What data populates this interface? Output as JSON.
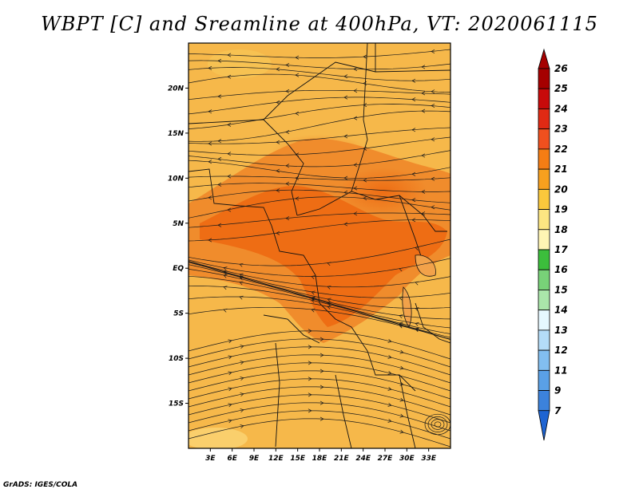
{
  "title": "WBPT [C] and Sreamline at 400hPa, VT: 2020061115",
  "credit": "GrADS: IGES/COLA",
  "map": {
    "lon_range": [
      0,
      36
    ],
    "lat_range": [
      -20,
      25
    ],
    "lat_ticks": [
      {
        "value": 20,
        "label": "20N"
      },
      {
        "value": 15,
        "label": "15N"
      },
      {
        "value": 10,
        "label": "10N"
      },
      {
        "value": 5,
        "label": "5N"
      },
      {
        "value": 0,
        "label": "EQ"
      },
      {
        "value": -5,
        "label": "5S"
      },
      {
        "value": -10,
        "label": "10S"
      },
      {
        "value": -15,
        "label": "15S"
      }
    ],
    "lon_ticks": [
      {
        "value": 3,
        "label": "3E"
      },
      {
        "value": 6,
        "label": "6E"
      },
      {
        "value": 9,
        "label": "9E"
      },
      {
        "value": 12,
        "label": "12E"
      },
      {
        "value": 15,
        "label": "15E"
      },
      {
        "value": 18,
        "label": "18E"
      },
      {
        "value": 21,
        "label": "21E"
      },
      {
        "value": 24,
        "label": "24E"
      },
      {
        "value": 27,
        "label": "27E"
      },
      {
        "value": 30,
        "label": "30E"
      },
      {
        "value": 33,
        "label": "33E"
      }
    ],
    "field_color_base": "#f6b84a",
    "field_color_warm": "#f08c2c",
    "field_color_hot": "#ee6d14"
  },
  "colorbar": {
    "levels": [
      {
        "label": "26",
        "color": "#a50000"
      },
      {
        "label": "25",
        "color": "#c80a0a"
      },
      {
        "label": "24",
        "color": "#e12a14"
      },
      {
        "label": "23",
        "color": "#f0501e"
      },
      {
        "label": "22",
        "color": "#f57d14"
      },
      {
        "label": "21",
        "color": "#f8a01e"
      },
      {
        "label": "20",
        "color": "#fac83c"
      },
      {
        "label": "19",
        "color": "#fce682"
      },
      {
        "label": "18",
        "color": "#fff5b4"
      },
      {
        "label": "17",
        "color": "#3cbe3c"
      },
      {
        "label": "16",
        "color": "#78d278"
      },
      {
        "label": "15",
        "color": "#aae6aa"
      },
      {
        "label": "14",
        "color": "#e6f8ff"
      },
      {
        "label": "13",
        "color": "#b4dcf8"
      },
      {
        "label": "12",
        "color": "#82bef0"
      },
      {
        "label": "11",
        "color": "#5aa0e6"
      },
      {
        "label": "9",
        "color": "#3c82dc"
      },
      {
        "label": "7",
        "color": "#1e64d2"
      }
    ]
  }
}
